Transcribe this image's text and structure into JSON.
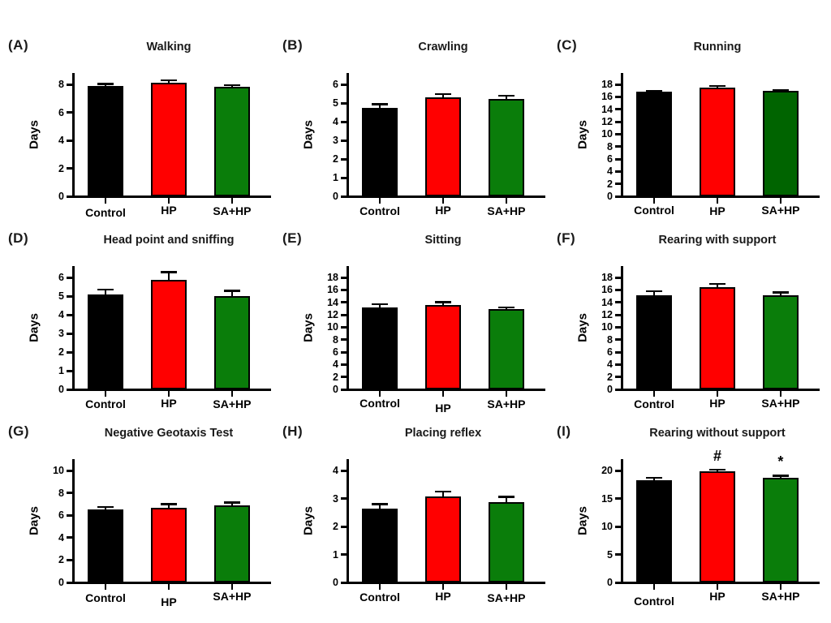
{
  "figure": {
    "background": "#ffffff",
    "shared_ylabel": "Days",
    "categories": [
      "Control",
      "HP",
      "SA+HP"
    ],
    "bar_palette": {
      "control": "#000000",
      "hp": "#ff0000",
      "sa_hp": "#0a7d0a",
      "sa_hp_dark": "#006400"
    }
  },
  "chart_data": [
    {
      "type": "bar",
      "panel": "(A)",
      "title": "Walking",
      "xlabel": "",
      "ylabel": "Days",
      "categories": [
        "Control",
        "HP",
        "SA+HP"
      ],
      "values": [
        7.9,
        8.1,
        7.8
      ],
      "errors": [
        0.15,
        0.2,
        0.15
      ],
      "bar_colors": [
        "#000000",
        "#ff0000",
        "#0a7d0a"
      ],
      "ylim": [
        0,
        8
      ],
      "ytick_step": 2,
      "yticks": [
        "0",
        "2",
        "4",
        "6",
        "8"
      ],
      "grid": false,
      "legend": "none",
      "annotations": [
        "",
        "",
        ""
      ],
      "label_dy": [
        3,
        0,
        1
      ]
    },
    {
      "type": "bar",
      "panel": "(B)",
      "title": "Crawling",
      "xlabel": "",
      "ylabel": "Days",
      "categories": [
        "Control",
        "HP",
        "SA+HP"
      ],
      "values": [
        4.75,
        5.3,
        5.2
      ],
      "errors": [
        0.2,
        0.18,
        0.2
      ],
      "bar_colors": [
        "#000000",
        "#ff0000",
        "#0a7d0a"
      ],
      "ylim": [
        0,
        6
      ],
      "ytick_step": 1,
      "yticks": [
        "0",
        "1",
        "2",
        "3",
        "4",
        "5",
        "6"
      ],
      "grid": false,
      "legend": "none",
      "annotations": [
        "",
        "",
        ""
      ],
      "label_dy": [
        1,
        0,
        1
      ]
    },
    {
      "type": "bar",
      "panel": "(C)",
      "title": "Running",
      "xlabel": "",
      "ylabel": "Days",
      "categories": [
        "Control",
        "HP",
        "SA+HP"
      ],
      "values": [
        16.8,
        17.5,
        16.9
      ],
      "errors": [
        0.2,
        0.25,
        0.15
      ],
      "bar_colors": [
        "#000000",
        "#ff0000",
        "#006400"
      ],
      "ylim": [
        0,
        18
      ],
      "ytick_step": 2,
      "yticks": [
        "0",
        "2",
        "4",
        "6",
        "8",
        "10",
        "12",
        "14",
        "16",
        "18"
      ],
      "grid": false,
      "legend": "none",
      "annotations": [
        "",
        "",
        ""
      ],
      "label_dy": [
        0,
        1,
        0
      ]
    },
    {
      "type": "bar",
      "panel": "(D)",
      "title": "Head point and sniffing",
      "xlabel": "",
      "ylabel": "Days",
      "categories": [
        "Control",
        "HP",
        "SA+HP"
      ],
      "values": [
        5.1,
        5.85,
        5.0
      ],
      "errors": [
        0.25,
        0.45,
        0.3
      ],
      "bar_colors": [
        "#000000",
        "#ff0000",
        "#0a7d0a"
      ],
      "ylim": [
        0,
        6
      ],
      "ytick_step": 1,
      "yticks": [
        "0",
        "1",
        "2",
        "3",
        "4",
        "5",
        "6"
      ],
      "grid": false,
      "legend": "none",
      "annotations": [
        "",
        "",
        ""
      ],
      "label_dy": [
        1,
        0,
        1
      ]
    },
    {
      "type": "bar",
      "panel": "(E)",
      "title": "Sitting",
      "xlabel": "",
      "ylabel": "Days",
      "categories": [
        "Control",
        "HP",
        "SA+HP"
      ],
      "values": [
        13.2,
        13.6,
        12.9
      ],
      "errors": [
        0.5,
        0.45,
        0.3
      ],
      "bar_colors": [
        "#000000",
        "#ff0000",
        "#0a7d0a"
      ],
      "ylim": [
        0,
        18
      ],
      "ytick_step": 2,
      "yticks": [
        "0",
        "2",
        "4",
        "6",
        "8",
        "10",
        "12",
        "14",
        "16",
        "18"
      ],
      "grid": false,
      "legend": "none",
      "annotations": [
        "",
        "",
        ""
      ],
      "label_dy": [
        0,
        6,
        1
      ]
    },
    {
      "type": "bar",
      "panel": "(F)",
      "title": "Rearing with support",
      "xlabel": "",
      "ylabel": "Days",
      "categories": [
        "Control",
        "HP",
        "SA+HP"
      ],
      "values": [
        15.1,
        16.5,
        15.1
      ],
      "errors": [
        0.7,
        0.5,
        0.5
      ],
      "bar_colors": [
        "#000000",
        "#ff0000",
        "#0a7d0a"
      ],
      "ylim": [
        0,
        18
      ],
      "ytick_step": 2,
      "yticks": [
        "0",
        "2",
        "4",
        "6",
        "8",
        "10",
        "12",
        "14",
        "16",
        "18"
      ],
      "grid": false,
      "legend": "none",
      "annotations": [
        "",
        "",
        ""
      ],
      "label_dy": [
        1,
        0,
        0
      ]
    },
    {
      "type": "bar",
      "panel": "(G)",
      "title": "Negative Geotaxis Test",
      "xlabel": "",
      "ylabel": "Days",
      "categories": [
        "Control",
        "HP",
        "SA+HP"
      ],
      "values": [
        6.5,
        6.65,
        6.85
      ],
      "errors": [
        0.25,
        0.35,
        0.3
      ],
      "bar_colors": [
        "#000000",
        "#ff0000",
        "#0a7d0a"
      ],
      "ylim": [
        0,
        10
      ],
      "ytick_step": 2,
      "yticks": [
        "0",
        "2",
        "4",
        "6",
        "8",
        "10"
      ],
      "grid": false,
      "legend": "none",
      "annotations": [
        "",
        "",
        ""
      ],
      "label_dy": [
        2,
        7,
        0
      ]
    },
    {
      "type": "bar",
      "panel": "(H)",
      "title": "Placing reflex",
      "xlabel": "",
      "ylabel": "Days",
      "categories": [
        "Control",
        "HP",
        "SA+HP"
      ],
      "values": [
        2.65,
        3.08,
        2.88
      ],
      "errors": [
        0.15,
        0.17,
        0.18
      ],
      "bar_colors": [
        "#000000",
        "#ff0000",
        "#0a7d0a"
      ],
      "ylim": [
        0,
        4
      ],
      "ytick_step": 1,
      "yticks": [
        "0",
        "1",
        "2",
        "3",
        "4"
      ],
      "grid": false,
      "legend": "none",
      "annotations": [
        "",
        "",
        ""
      ],
      "label_dy": [
        1,
        0,
        2
      ]
    },
    {
      "type": "bar",
      "panel": "(I)",
      "title": "Rearing without support",
      "xlabel": "",
      "ylabel": "Days",
      "categories": [
        "Control",
        "HP",
        "SA+HP"
      ],
      "values": [
        18.3,
        19.9,
        18.7
      ],
      "errors": [
        0.4,
        0.3,
        0.4
      ],
      "bar_colors": [
        "#000000",
        "#ff0000",
        "#0a7d0a"
      ],
      "ylim": [
        0,
        20
      ],
      "ytick_step": 5,
      "yticks": [
        "0",
        "5",
        "10",
        "15",
        "20"
      ],
      "grid": false,
      "legend": "none",
      "annotations": [
        "",
        "#",
        "*"
      ],
      "label_dy": [
        6,
        0,
        0
      ]
    }
  ]
}
